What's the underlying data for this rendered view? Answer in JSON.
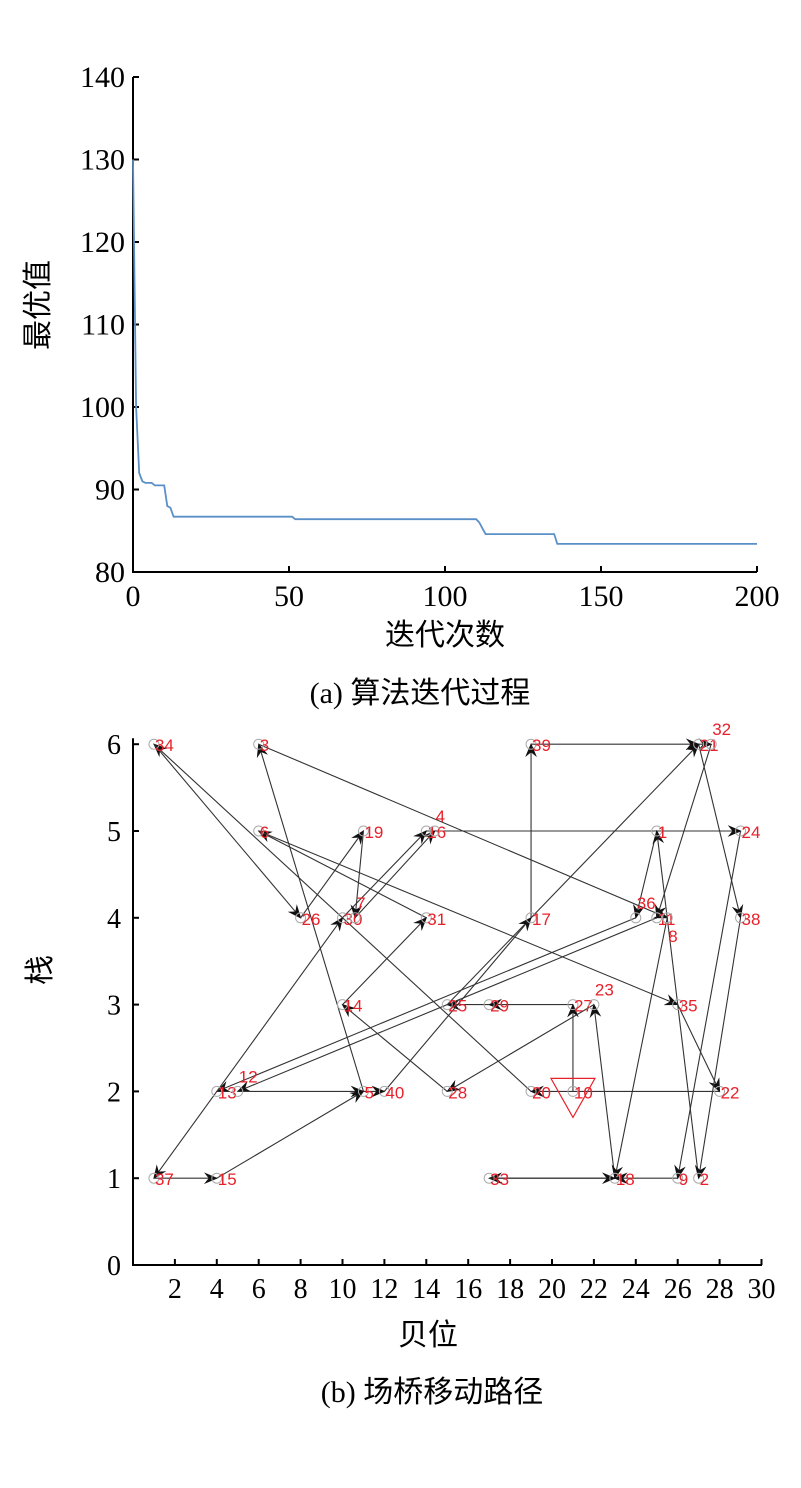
{
  "chart_data": [
    {
      "type": "line",
      "title": "",
      "caption": "(a) 算法迭代过程",
      "xlabel": "迭代次数",
      "ylabel": "最优值",
      "xlim": [
        0,
        200
      ],
      "ylim": [
        80,
        140
      ],
      "xticks": [
        "0",
        "50",
        "100",
        "150",
        "200"
      ],
      "yticks": [
        "80",
        "90",
        "100",
        "110",
        "120",
        "130",
        "140"
      ],
      "grid": false,
      "line_color": "#5b8fc7",
      "series": [
        {
          "name": "最优值",
          "x": [
            0,
            1,
            2,
            3,
            4,
            6,
            7,
            10,
            11,
            12,
            13,
            51,
            52,
            110,
            111,
            112,
            113,
            135,
            136,
            200
          ],
          "y": [
            130,
            100,
            92,
            91,
            90.8,
            90.8,
            90.5,
            90.5,
            88,
            87.8,
            86.7,
            86.7,
            86.4,
            86.4,
            86.0,
            85.3,
            84.6,
            84.6,
            83.4,
            83.4
          ]
        }
      ]
    },
    {
      "type": "scatter",
      "title": "",
      "caption": "(b) 场桥移动路径",
      "xlabel": "贝位",
      "ylabel": "栈",
      "xlim": [
        0,
        30
      ],
      "ylim": [
        0,
        6
      ],
      "xticks": [
        "2",
        "4",
        "6",
        "8",
        "10",
        "12",
        "14",
        "16",
        "18",
        "20",
        "22",
        "24",
        "26",
        "28",
        "30"
      ],
      "yticks": [
        "0",
        "1",
        "2",
        "3",
        "4",
        "5",
        "6"
      ],
      "grid": false,
      "label_color": "#e8202a",
      "start_marker_color": "#e8202a",
      "start_node": "10",
      "nodes": [
        {
          "id": "34",
          "x": 1,
          "y": 6
        },
        {
          "id": "3",
          "x": 6,
          "y": 6
        },
        {
          "id": "39",
          "x": 19,
          "y": 6
        },
        {
          "id": "21",
          "x": 27,
          "y": 6
        },
        {
          "id": "32",
          "x": 27.6,
          "y": 6
        },
        {
          "id": "6",
          "x": 6,
          "y": 5
        },
        {
          "id": "19",
          "x": 11,
          "y": 5
        },
        {
          "id": "16",
          "x": 14,
          "y": 5
        },
        {
          "id": "4",
          "x": 14.4,
          "y": 5
        },
        {
          "id": "1",
          "x": 25,
          "y": 5
        },
        {
          "id": "24",
          "x": 29,
          "y": 5
        },
        {
          "id": "26",
          "x": 8,
          "y": 4
        },
        {
          "id": "30",
          "x": 10,
          "y": 4
        },
        {
          "id": "7",
          "x": 10.6,
          "y": 4
        },
        {
          "id": "31",
          "x": 14,
          "y": 4
        },
        {
          "id": "17",
          "x": 19,
          "y": 4
        },
        {
          "id": "36",
          "x": 24,
          "y": 4
        },
        {
          "id": "11",
          "x": 25,
          "y": 4
        },
        {
          "id": "8",
          "x": 25.5,
          "y": 4
        },
        {
          "id": "38",
          "x": 29,
          "y": 4
        },
        {
          "id": "14",
          "x": 10,
          "y": 3
        },
        {
          "id": "25",
          "x": 15,
          "y": 3
        },
        {
          "id": "29",
          "x": 17,
          "y": 3
        },
        {
          "id": "27",
          "x": 21,
          "y": 3
        },
        {
          "id": "23",
          "x": 22,
          "y": 3
        },
        {
          "id": "35",
          "x": 26,
          "y": 3
        },
        {
          "id": "13",
          "x": 4,
          "y": 2
        },
        {
          "id": "12",
          "x": 5,
          "y": 2
        },
        {
          "id": "5",
          "x": 11,
          "y": 2
        },
        {
          "id": "40",
          "x": 12,
          "y": 2
        },
        {
          "id": "28",
          "x": 15,
          "y": 2
        },
        {
          "id": "20",
          "x": 19,
          "y": 2
        },
        {
          "id": "10",
          "x": 21,
          "y": 2
        },
        {
          "id": "22",
          "x": 28,
          "y": 2
        },
        {
          "id": "37",
          "x": 1,
          "y": 1
        },
        {
          "id": "15",
          "x": 4,
          "y": 1
        },
        {
          "id": "33",
          "x": 17,
          "y": 1
        },
        {
          "id": "18",
          "x": 23,
          "y": 1
        },
        {
          "id": "9",
          "x": 26,
          "y": 1
        },
        {
          "id": "2",
          "x": 27,
          "y": 1
        }
      ],
      "edges": [
        [
          "10",
          "27"
        ],
        [
          "27",
          "29"
        ],
        [
          "29",
          "25"
        ],
        [
          "25",
          "21"
        ],
        [
          "21",
          "32"
        ],
        [
          "32",
          "11"
        ],
        [
          "11",
          "12"
        ],
        [
          "12",
          "5"
        ],
        [
          "5",
          "3"
        ],
        [
          "3",
          "8"
        ],
        [
          "36",
          "13"
        ],
        [
          "13",
          "30"
        ],
        [
          "30",
          "16"
        ],
        [
          "16",
          "24"
        ],
        [
          "24",
          "9"
        ],
        [
          "9",
          "18"
        ],
        [
          "18",
          "33"
        ],
        [
          "33",
          "18"
        ],
        [
          "18",
          "23"
        ],
        [
          "23",
          "28"
        ],
        [
          "28",
          "14"
        ],
        [
          "14",
          "31"
        ],
        [
          "31",
          "6"
        ],
        [
          "6",
          "35"
        ],
        [
          "35",
          "22"
        ],
        [
          "22",
          "20"
        ],
        [
          "20",
          "34"
        ],
        [
          "34",
          "26"
        ],
        [
          "26",
          "19"
        ],
        [
          "19",
          "7"
        ],
        [
          "7",
          "4"
        ],
        [
          "1",
          "36"
        ],
        [
          "2",
          "1"
        ],
        [
          "21",
          "38"
        ],
        [
          "38",
          "2"
        ],
        [
          "13",
          "37"
        ],
        [
          "37",
          "15"
        ],
        [
          "15",
          "5"
        ],
        [
          "5",
          "40"
        ],
        [
          "40",
          "17"
        ],
        [
          "17",
          "39"
        ],
        [
          "39",
          "21"
        ],
        [
          "8",
          "18"
        ]
      ]
    }
  ]
}
